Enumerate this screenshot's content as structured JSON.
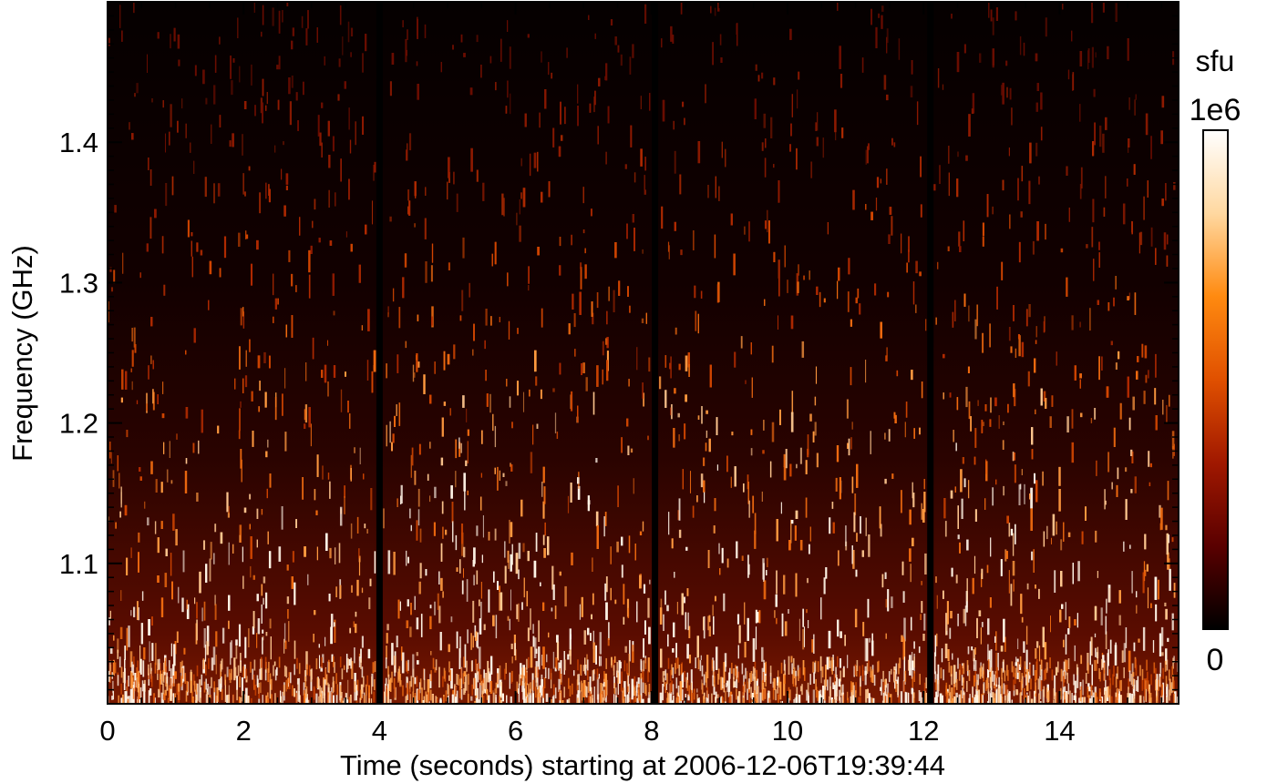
{
  "chart_data": {
    "type": "heatmap",
    "xlabel": "Time (seconds) starting at 2006-12-06T19:39:44",
    "ylabel": "Frequency (GHz)",
    "xlim": [
      0,
      15.75
    ],
    "ylim": [
      1.0,
      1.5
    ],
    "x_ticks": [
      0,
      2,
      4,
      6,
      8,
      10,
      12,
      14
    ],
    "x_tick_labels": [
      "0",
      "2",
      "4",
      "6",
      "8",
      "10",
      "12",
      "14"
    ],
    "y_ticks": [
      1.1,
      1.2,
      1.3,
      1.4
    ],
    "y_tick_labels": [
      "1.1",
      "1.2",
      "1.3",
      "1.4"
    ],
    "data_gaps_seconds": [
      4.0,
      8.05,
      12.1
    ],
    "colorbar": {
      "unit": "sfu",
      "max_label": "1e6",
      "min_label": "0",
      "range": [
        0,
        1000000
      ],
      "colors": [
        "#000000",
        "#5a0000",
        "#a01800",
        "#e05000",
        "#ff8a10",
        "#ffd8a0",
        "#ffffff"
      ]
    },
    "description_pattern": {
      "emission_concentrated_below_GHz": 1.2,
      "fine_structure": "dense vertical spike bursts"
    }
  }
}
